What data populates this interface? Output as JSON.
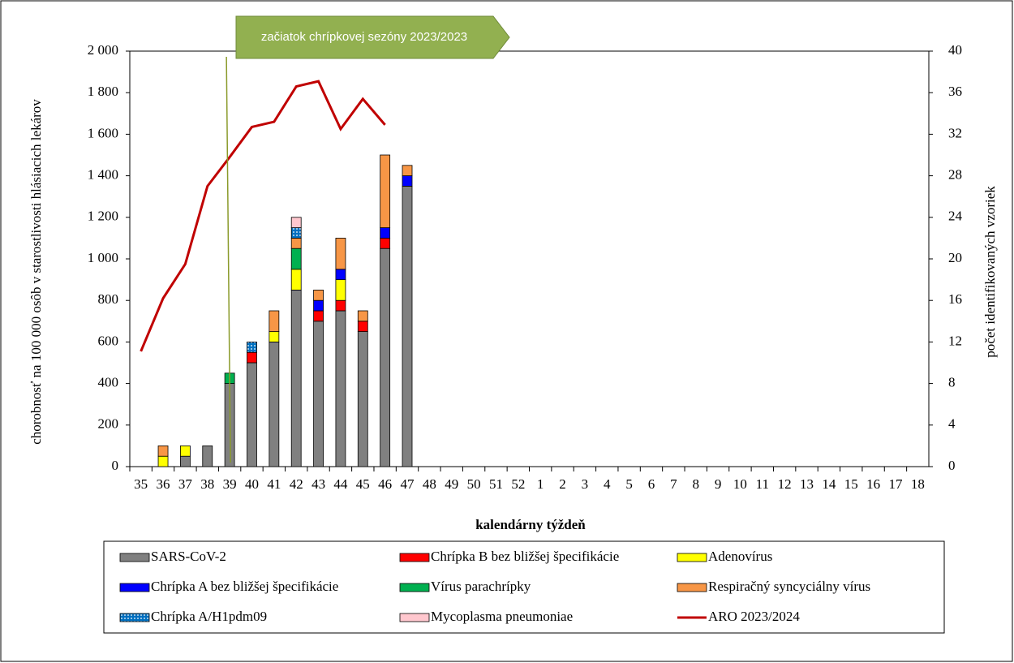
{
  "chart_data": {
    "type": "bar",
    "annotation": "začiatok chrípkovej sezóny 2023/2023",
    "x_label": "kalendárny týždeň",
    "y_label": "chorobnosť na 100 000 osôb v starostlivosti hlásiacich lekárov",
    "y2_label": "počet identifikovaných vzoriek",
    "categories": [
      "35",
      "36",
      "37",
      "38",
      "39",
      "40",
      "41",
      "42",
      "43",
      "44",
      "45",
      "46",
      "47",
      "48",
      "49",
      "50",
      "51",
      "52",
      "1",
      "2",
      "3",
      "4",
      "5",
      "6",
      "7",
      "8",
      "9",
      "10",
      "11",
      "12",
      "13",
      "14",
      "15",
      "16",
      "17",
      "18"
    ],
    "ylim": [
      0,
      2000
    ],
    "yticks": [
      0,
      200,
      400,
      600,
      800,
      {
        "value": 1000,
        "label": "1 000"
      },
      {
        "value": 1200,
        "label": "1 200"
      },
      {
        "value": 1400,
        "label": "1 400"
      },
      {
        "value": 1600,
        "label": "1 600"
      },
      {
        "value": 1800,
        "label": "1 800"
      },
      {
        "value": 2000,
        "label": "2 000"
      }
    ],
    "y2lim": [
      0,
      40
    ],
    "y2ticks": [
      0,
      4,
      8,
      12,
      16,
      20,
      24,
      28,
      32,
      36,
      40
    ],
    "series": [
      {
        "name": "SARS-CoV-2",
        "color": "#808080",
        "axis": "y2",
        "values": [
          null,
          null,
          1,
          2,
          8,
          10,
          12,
          17,
          14,
          15,
          13,
          21,
          27,
          null,
          null,
          null,
          null,
          null,
          null,
          null,
          null,
          null,
          null,
          null,
          null,
          null,
          null,
          null,
          null,
          null,
          null,
          null,
          null,
          null,
          null,
          null
        ]
      },
      {
        "name": "Chrípka B bez bližšej špecifikácie",
        "color": "#ff0000",
        "axis": "y2",
        "values": [
          null,
          null,
          null,
          null,
          null,
          1,
          null,
          null,
          1,
          1,
          1,
          1,
          null,
          null,
          null,
          null,
          null,
          null,
          null,
          null,
          null,
          null,
          null,
          null,
          null,
          null,
          null,
          null,
          null,
          null,
          null,
          null,
          null,
          null,
          null,
          null
        ]
      },
      {
        "name": "Adenovírus",
        "color": "#ffff00",
        "axis": "y2",
        "values": [
          null,
          1,
          1,
          null,
          null,
          null,
          1,
          2,
          null,
          2,
          null,
          null,
          null,
          null,
          null,
          null,
          null,
          null,
          null,
          null,
          null,
          null,
          null,
          null,
          null,
          null,
          null,
          null,
          null,
          null,
          null,
          null,
          null,
          null,
          null,
          null
        ]
      },
      {
        "name": "Chrípka A bez bližšej špecifikácie",
        "color": "#0000ff",
        "axis": "y2",
        "values": [
          null,
          null,
          null,
          null,
          null,
          null,
          null,
          null,
          1,
          1,
          null,
          1,
          1,
          null,
          null,
          null,
          null,
          null,
          null,
          null,
          null,
          null,
          null,
          null,
          null,
          null,
          null,
          null,
          null,
          null,
          null,
          null,
          null,
          null,
          null,
          null
        ]
      },
      {
        "name": "Vírus parachrípky",
        "color": "#00b050",
        "axis": "y2",
        "values": [
          null,
          null,
          null,
          null,
          1,
          null,
          null,
          2,
          null,
          null,
          null,
          null,
          null,
          null,
          null,
          null,
          null,
          null,
          null,
          null,
          null,
          null,
          null,
          null,
          null,
          null,
          null,
          null,
          null,
          null,
          null,
          null,
          null,
          null,
          null,
          null
        ]
      },
      {
        "name": "Respiračný syncyciálny vírus",
        "color": "#f79646",
        "axis": "y2",
        "values": [
          null,
          1,
          null,
          null,
          null,
          null,
          2,
          1,
          1,
          3,
          1,
          7,
          1,
          null,
          null,
          null,
          null,
          null,
          null,
          null,
          null,
          null,
          null,
          null,
          null,
          null,
          null,
          null,
          null,
          null,
          null,
          null,
          null,
          null,
          null,
          null
        ]
      },
      {
        "name": "Chrípka A/H1pdm09",
        "color": "#0070c0",
        "pattern": "dots",
        "axis": "y2",
        "values": [
          null,
          null,
          null,
          null,
          null,
          1,
          null,
          1,
          null,
          null,
          null,
          null,
          null,
          null,
          null,
          null,
          null,
          null,
          null,
          null,
          null,
          null,
          null,
          null,
          null,
          null,
          null,
          null,
          null,
          null,
          null,
          null,
          null,
          null,
          null,
          null
        ]
      },
      {
        "name": "Mycoplasma pneumoniae",
        "color": "#ffc7ce",
        "axis": "y2",
        "values": [
          null,
          null,
          null,
          null,
          null,
          null,
          null,
          1,
          null,
          null,
          null,
          null,
          null,
          null,
          null,
          null,
          null,
          null,
          null,
          null,
          null,
          null,
          null,
          null,
          null,
          null,
          null,
          null,
          null,
          null,
          null,
          null,
          null,
          null,
          null,
          null
        ]
      },
      {
        "name": "ARO 2023/2024",
        "color": "#c00000",
        "type": "line",
        "values": [
          555,
          810,
          975,
          1350,
          1490,
          1635,
          1660,
          1830,
          1855,
          1625,
          1770,
          1645,
          null,
          null,
          null,
          null,
          null,
          null,
          null,
          null,
          null,
          null,
          null,
          null,
          null,
          null,
          null,
          null,
          null,
          null,
          null,
          null,
          null,
          null,
          null,
          null
        ]
      }
    ]
  }
}
